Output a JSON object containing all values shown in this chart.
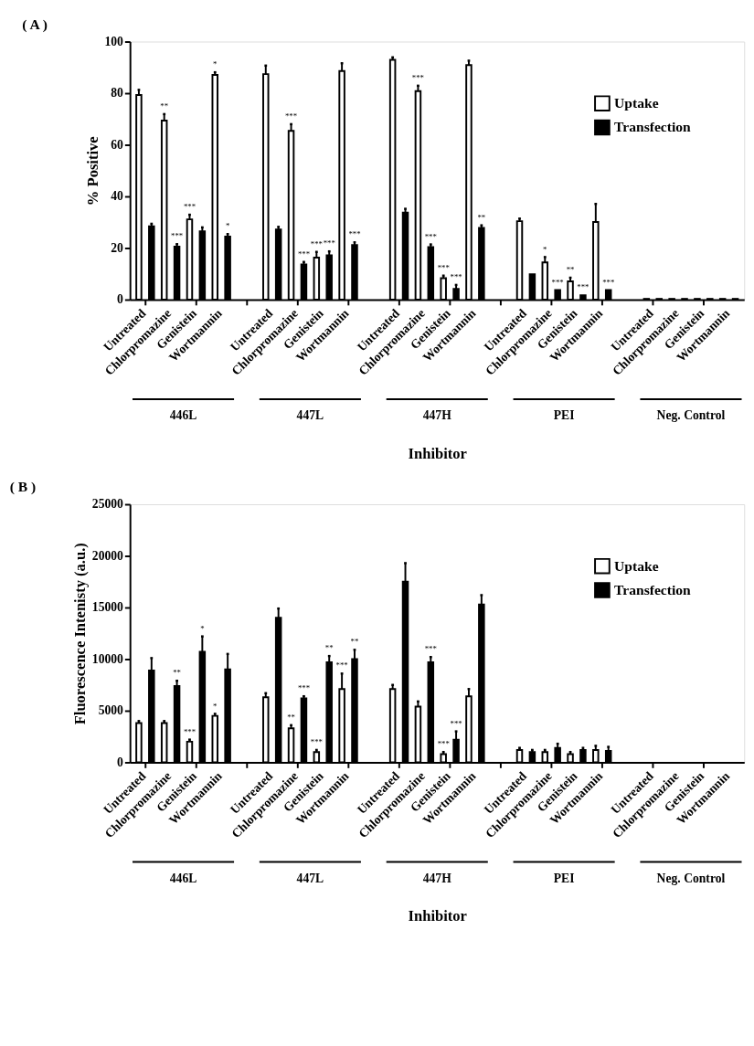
{
  "chart_data": [
    {
      "type": "bar",
      "title": "( A )",
      "xlabel": "Inhibitor",
      "ylabel": "% Positive",
      "ylim": [
        0,
        100
      ],
      "yticks": [
        0,
        20,
        40,
        60,
        80,
        100
      ],
      "grid": false,
      "legend": "top right",
      "categories": [
        "Untreated",
        "Chlorpromazine",
        "Genistein",
        "Wortmannin",
        null,
        "Untreated",
        "Chlorpromazine",
        "Genistein",
        "Wortmannin",
        null,
        "Untreated",
        "Chlorpromazine",
        "Genistein",
        "Wortmannin",
        null,
        "Untreated",
        "Chlorpromazine",
        "Genistein",
        "Wortmannin",
        null,
        "Untreated",
        "Chlorpromazine",
        "Genistein",
        "Wortmannin"
      ],
      "annotations": [
        "446L",
        "447L",
        "447H",
        "PEI",
        "Neg. Control"
      ],
      "series": [
        {
          "name": "Uptake",
          "color": "#ffffff",
          "values": [
            79.3,
            69.4,
            31.1,
            87.1,
            null,
            87.4,
            65.4,
            16.3,
            88.6,
            null,
            92.9,
            80.8,
            8.3,
            90.9,
            null,
            30.4,
            14.4,
            7.1,
            30.1,
            null,
            0.3,
            0.3,
            0.3,
            0.3
          ],
          "errors": [
            2,
            2.5,
            1.8,
            1,
            null,
            3.3,
            2.6,
            2.2,
            3,
            null,
            1,
            2.1,
            1,
            1.7,
            null,
            1,
            2.1,
            1.4,
            7,
            null,
            null,
            null,
            null,
            null
          ],
          "value_labels": [
            null,
            "**",
            "***",
            "*",
            null,
            null,
            "***",
            "***",
            null,
            null,
            null,
            "***",
            "***",
            null,
            null,
            null,
            "*",
            "**",
            null,
            null,
            null,
            null,
            null,
            null
          ]
        },
        {
          "name": "Transfection",
          "color": "#000000",
          "values": [
            28.4,
            20.5,
            26.5,
            24.4,
            null,
            27.2,
            13.6,
            17.2,
            21.2,
            null,
            33.7,
            20.4,
            4.2,
            27.8,
            null,
            9.8,
            3.7,
            1.7,
            3.7,
            null,
            0.3,
            0.3,
            0.3,
            0.3
          ],
          "errors": [
            1,
            1,
            1.5,
            1,
            null,
            1,
            1,
            1.5,
            1,
            null,
            1.5,
            1,
            1.5,
            1,
            null,
            null,
            null,
            null,
            null,
            null,
            null,
            null,
            null,
            null
          ],
          "value_labels": [
            null,
            "***",
            null,
            "*",
            null,
            null,
            "***",
            "***",
            "***",
            null,
            null,
            "***",
            "***",
            "**",
            null,
            null,
            "***",
            "***",
            "***",
            null,
            null,
            null,
            null,
            null
          ]
        }
      ]
    },
    {
      "type": "bar",
      "title": "( B )",
      "xlabel": "Inhibitor",
      "ylabel": "Fluorescence Intenisty (a.u.)",
      "ylim": [
        0,
        25000
      ],
      "yticks": [
        0,
        5000,
        10000,
        15000,
        20000,
        25000
      ],
      "grid": false,
      "legend": "top right",
      "categories": [
        "Untreated",
        "Chlorpromazine",
        "Genistein",
        "Wortmannin",
        null,
        "Untreated",
        "Chlorpromazine",
        "Genistein",
        "Wortmannin",
        null,
        "Untreated",
        "Chlorpromazine",
        "Genistein",
        "Wortmannin",
        null,
        "Untreated",
        "Chlorpromazine",
        "Genistein",
        "Wortmannin",
        null,
        "Untreated",
        "Chlorpromazine",
        "Genistein",
        "Wortmannin"
      ],
      "annotations": [
        "446L",
        "447L",
        "447H",
        "PEI",
        "Neg. Control"
      ],
      "series": [
        {
          "name": "Uptake",
          "color": "#ffffff",
          "values": [
            3800,
            3800,
            2000,
            4500,
            null,
            6300,
            3300,
            1000,
            7100,
            null,
            7100,
            5400,
            800,
            6400,
            null,
            1200,
            1000,
            800,
            1200,
            null,
            null,
            null,
            null,
            null
          ],
          "errors": [
            200,
            200,
            200,
            200,
            null,
            400,
            300,
            200,
            1500,
            null,
            400,
            500,
            200,
            700,
            null,
            200,
            200,
            200,
            400,
            null,
            null,
            null,
            null,
            null
          ],
          "value_labels": [
            null,
            null,
            "***",
            "*",
            null,
            null,
            "**",
            "***",
            "***",
            null,
            null,
            null,
            "***",
            null,
            null,
            null,
            null,
            null,
            null,
            null,
            null,
            null,
            null,
            null
          ]
        },
        {
          "name": "Transfection",
          "color": "#000000",
          "values": [
            8900,
            7400,
            10700,
            9000,
            null,
            14000,
            6200,
            9700,
            10000,
            null,
            17500,
            9700,
            2200,
            15300,
            null,
            1000,
            1400,
            1200,
            1100,
            null,
            null,
            null,
            null,
            null
          ],
          "errors": [
            1200,
            500,
            1500,
            1500,
            null,
            900,
            200,
            600,
            900,
            null,
            1800,
            500,
            800,
            900,
            null,
            200,
            400,
            200,
            400,
            null,
            null,
            null,
            null,
            null
          ],
          "value_labels": [
            null,
            "**",
            "*",
            null,
            null,
            null,
            "***",
            "**",
            "**",
            null,
            null,
            "***",
            "***",
            null,
            null,
            null,
            null,
            null,
            null,
            null,
            null,
            null,
            null,
            null
          ]
        }
      ]
    }
  ]
}
